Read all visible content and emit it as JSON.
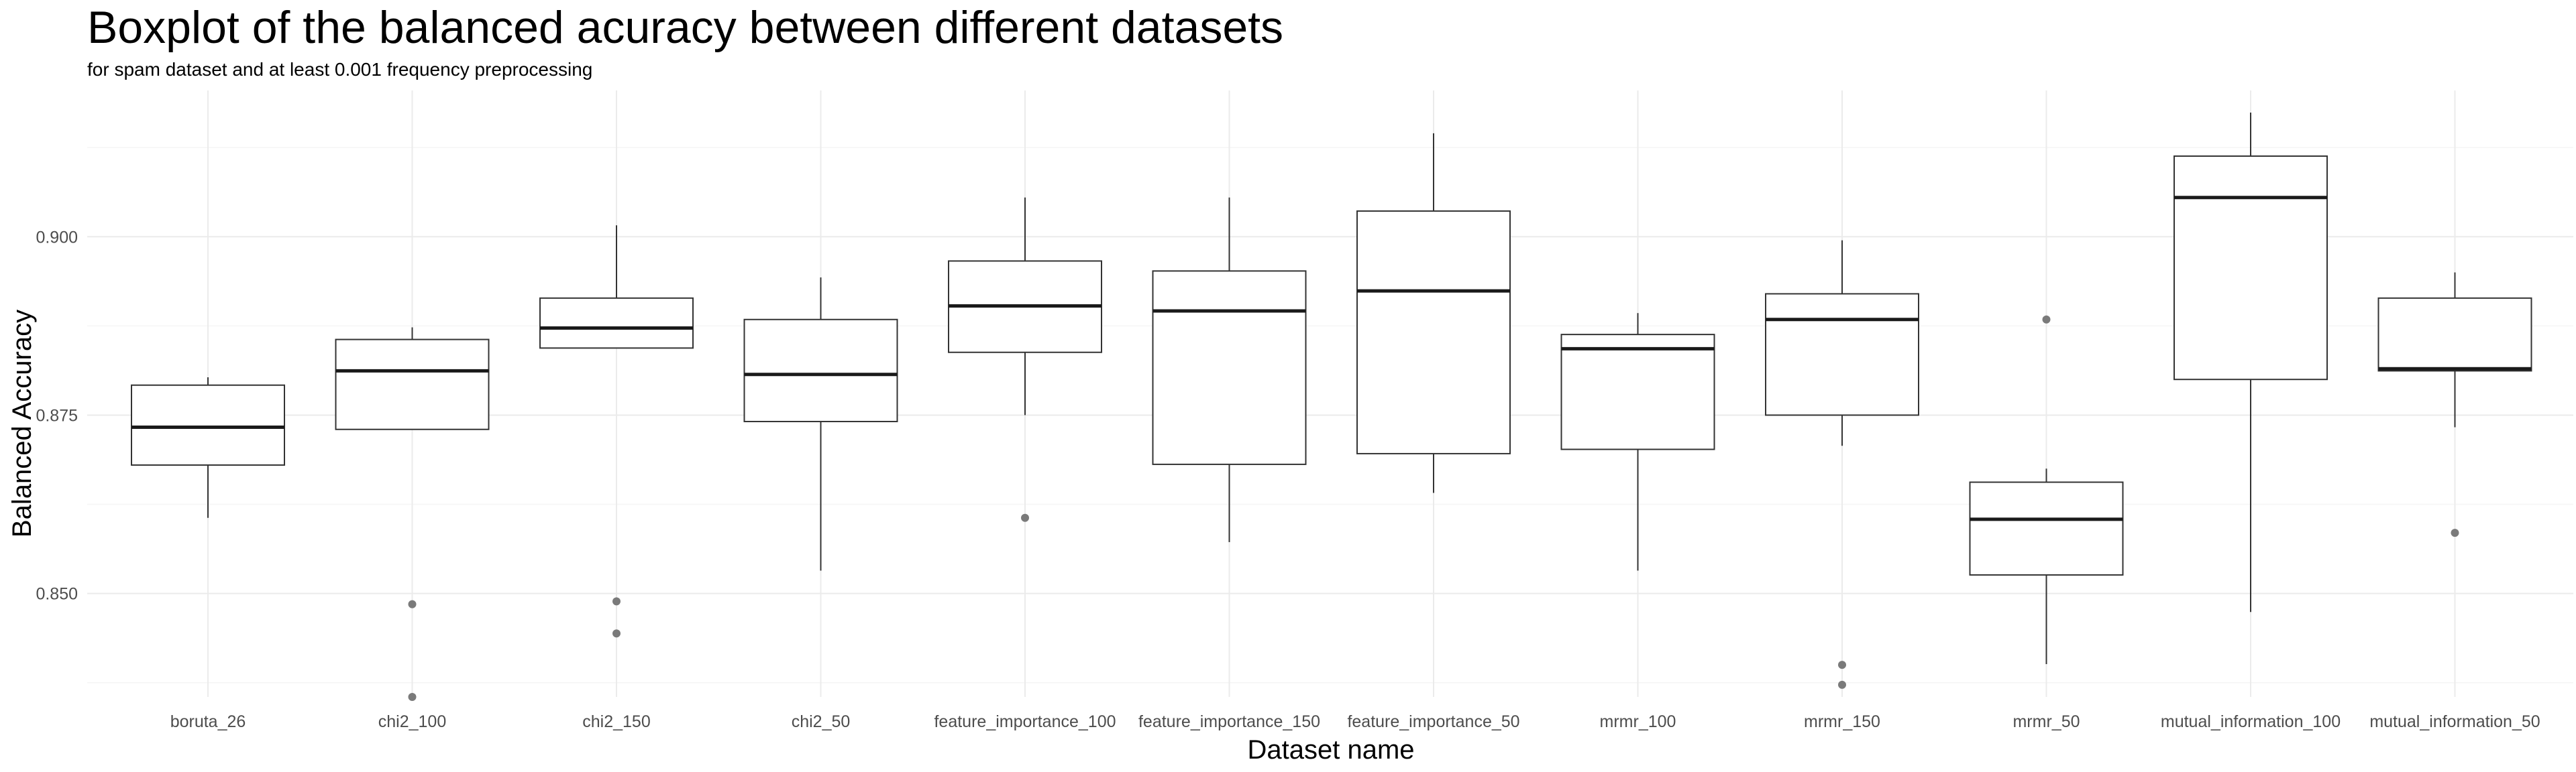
{
  "chart_data": {
    "type": "boxplot",
    "title": "Boxplot of the balanced acuracy between different datasets",
    "subtitle": "for spam dataset and at least 0.001 frequency preprocessing",
    "xlabel": "Dataset name",
    "ylabel": "Balanced Accuracy",
    "ylim": [
      0.8355,
      0.9205
    ],
    "yticks": [
      0.85,
      0.875,
      0.9
    ],
    "ytick_labels": [
      "0.850",
      "0.875",
      "0.900"
    ],
    "grid": true,
    "categories": [
      "boruta_26",
      "chi2_100",
      "chi2_150",
      "chi2_50",
      "feature_importance_100",
      "feature_importance_150",
      "feature_importance_50",
      "mrmr_100",
      "mrmr_150",
      "mrmr_50",
      "mutual_information_100",
      "mutual_information_50"
    ],
    "boxes": [
      {
        "whisker_low": 0.8606,
        "q1": 0.868,
        "median": 0.8733,
        "q3": 0.8792,
        "whisker_high": 0.8803,
        "outliers": []
      },
      {
        "whisker_low": 0.873,
        "q1": 0.873,
        "median": 0.8812,
        "q3": 0.8856,
        "whisker_high": 0.8873,
        "outliers": [
          0.8485,
          0.8355
        ]
      },
      {
        "whisker_low": 0.8844,
        "q1": 0.8844,
        "median": 0.8872,
        "q3": 0.8914,
        "whisker_high": 0.9016,
        "outliers": [
          0.8489,
          0.8444
        ]
      },
      {
        "whisker_low": 0.8532,
        "q1": 0.8741,
        "median": 0.8807,
        "q3": 0.8884,
        "whisker_high": 0.8943,
        "outliers": []
      },
      {
        "whisker_low": 0.875,
        "q1": 0.8838,
        "median": 0.8903,
        "q3": 0.8966,
        "whisker_high": 0.9055,
        "outliers": [
          0.8606
        ]
      },
      {
        "whisker_low": 0.8572,
        "q1": 0.8681,
        "median": 0.8896,
        "q3": 0.8952,
        "whisker_high": 0.9055,
        "outliers": []
      },
      {
        "whisker_low": 0.8641,
        "q1": 0.8696,
        "median": 0.8924,
        "q3": 0.9036,
        "whisker_high": 0.9145,
        "outliers": []
      },
      {
        "whisker_low": 0.8532,
        "q1": 0.8702,
        "median": 0.8843,
        "q3": 0.8863,
        "whisker_high": 0.8893,
        "outliers": []
      },
      {
        "whisker_low": 0.8707,
        "q1": 0.875,
        "median": 0.8884,
        "q3": 0.892,
        "whisker_high": 0.8995,
        "outliers": [
          0.84,
          0.8372
        ]
      },
      {
        "whisker_low": 0.8401,
        "q1": 0.8526,
        "median": 0.8604,
        "q3": 0.8656,
        "whisker_high": 0.8675,
        "outliers": [
          0.8884
        ]
      },
      {
        "whisker_low": 0.8474,
        "q1": 0.88,
        "median": 0.9055,
        "q3": 0.9113,
        "whisker_high": 0.9174,
        "outliers": []
      },
      {
        "whisker_low": 0.8733,
        "q1": 0.8812,
        "median": 0.8815,
        "q3": 0.8914,
        "whisker_high": 0.895,
        "outliers": [
          0.8585
        ]
      }
    ],
    "colors": {
      "box_fill": "#ffffff",
      "box_stroke": "#333333",
      "median": "#1a1a1a",
      "outlier": "#7a7a7a",
      "grid_major": "#ebebeb",
      "grid_minor": "#f5f5f5"
    }
  }
}
